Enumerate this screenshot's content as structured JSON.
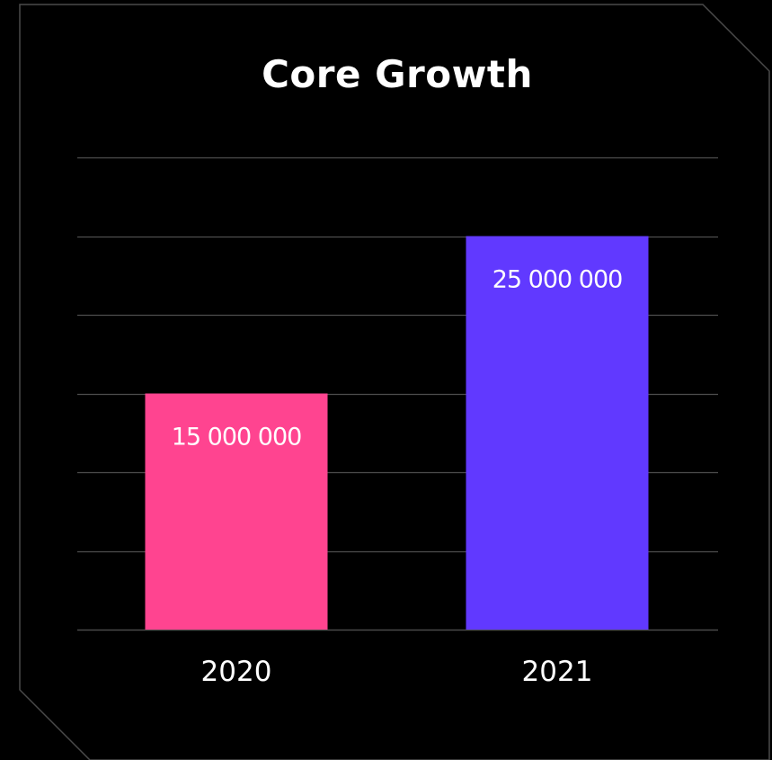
{
  "chart_data": {
    "type": "bar",
    "title": "Core Growth",
    "categories": [
      "2020",
      "2021"
    ],
    "values": [
      15000000,
      25000000
    ],
    "data_labels": [
      "15 000 000",
      "25 000 000"
    ],
    "colors": [
      "#ff4490",
      "#6139ff"
    ],
    "ylim": [
      0,
      30000000
    ],
    "gridline_count": 7,
    "grid": true,
    "xlabel": "",
    "ylabel": ""
  },
  "theme": {
    "background": "#000000",
    "frame_color": "#4a4a4a",
    "grid_color": "#4d4d4d",
    "text_color": "#ffffff"
  }
}
